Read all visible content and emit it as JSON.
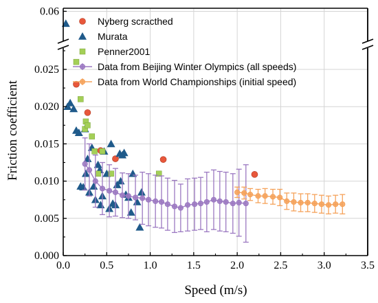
{
  "chart_data": {
    "type": "scatter",
    "xlabel": "Speed (m/s)",
    "ylabel": "Friction coefficient",
    "xlim": [
      0.0,
      3.5
    ],
    "ylim_lower": [
      0.0,
      0.028
    ],
    "ylim_upper_value": 0.06,
    "y_axis_break": true,
    "grid": true,
    "legend_position": "top-right",
    "x_ticks": [
      "0.0",
      "0.5",
      "1.0",
      "1.5",
      "2.0",
      "2.5",
      "3.0",
      "3.5"
    ],
    "y_ticks": [
      "0.000",
      "0.005",
      "0.010",
      "0.015",
      "0.020",
      "0.025"
    ],
    "y_upper_tick": "0.06",
    "series": [
      {
        "name": "Nyberg scracthed",
        "marker": "circle",
        "color": "#e8573b",
        "points": [
          [
            0.15,
            0.023
          ],
          [
            0.28,
            0.0192
          ],
          [
            0.43,
            0.0141
          ],
          [
            0.6,
            0.013
          ],
          [
            1.15,
            0.0129
          ],
          [
            2.2,
            0.0109
          ]
        ]
      },
      {
        "name": "Murata",
        "marker": "triangle",
        "color": "#1f5a8a",
        "points": [
          [
            0.03,
            0.058
          ],
          [
            0.05,
            0.02
          ],
          [
            0.08,
            0.0205
          ],
          [
            0.12,
            0.0197
          ],
          [
            0.15,
            0.0168
          ],
          [
            0.18,
            0.0165
          ],
          [
            0.2,
            0.0093
          ],
          [
            0.23,
            0.0092
          ],
          [
            0.25,
            0.017
          ],
          [
            0.26,
            0.011
          ],
          [
            0.28,
            0.013
          ],
          [
            0.3,
            0.0085
          ],
          [
            0.33,
            0.0145
          ],
          [
            0.35,
            0.0093
          ],
          [
            0.37,
            0.0075
          ],
          [
            0.4,
            0.0122
          ],
          [
            0.42,
            0.0115
          ],
          [
            0.43,
            0.0068
          ],
          [
            0.45,
            0.008
          ],
          [
            0.47,
            0.014
          ],
          [
            0.5,
            0.011
          ],
          [
            0.53,
            0.0063
          ],
          [
            0.55,
            0.015
          ],
          [
            0.57,
            0.007
          ],
          [
            0.6,
            0.0068
          ],
          [
            0.62,
            0.0095
          ],
          [
            0.65,
            0.0137
          ],
          [
            0.66,
            0.01
          ],
          [
            0.68,
            0.0135
          ],
          [
            0.7,
            0.0138
          ],
          [
            0.72,
            0.0082
          ],
          [
            0.75,
            0.0078
          ],
          [
            0.78,
            0.0058
          ],
          [
            0.8,
            0.011
          ],
          [
            0.85,
            0.0072
          ],
          [
            0.88,
            0.0038
          ],
          [
            0.9,
            0.0085
          ]
        ]
      },
      {
        "name": "Penner2001",
        "marker": "square",
        "color": "#a4cf57",
        "points": [
          [
            0.15,
            0.026
          ],
          [
            0.2,
            0.021
          ],
          [
            0.25,
            0.017
          ],
          [
            0.26,
            0.018
          ],
          [
            0.28,
            0.0175
          ],
          [
            0.33,
            0.016
          ],
          [
            0.36,
            0.014
          ],
          [
            0.4,
            0.011
          ],
          [
            0.45,
            0.014
          ],
          [
            0.55,
            0.011
          ],
          [
            1.1,
            0.011
          ]
        ]
      },
      {
        "name": "Data from Beijing Winter Olympics (all speeds)",
        "marker": "circle-line",
        "color": "#9b78c1",
        "points": [
          [
            0.25,
            0.0123,
            0.0035
          ],
          [
            0.3,
            0.0115,
            0.0035
          ],
          [
            0.37,
            0.01,
            0.0035
          ],
          [
            0.45,
            0.009,
            0.0035
          ],
          [
            0.53,
            0.0087,
            0.0035
          ],
          [
            0.6,
            0.0085,
            0.0032
          ],
          [
            0.68,
            0.0081,
            0.003
          ],
          [
            0.75,
            0.008,
            0.003
          ],
          [
            0.83,
            0.0078,
            0.003
          ],
          [
            0.91,
            0.0077,
            0.0035
          ],
          [
            0.98,
            0.0075,
            0.0035
          ],
          [
            1.06,
            0.0073,
            0.0035
          ],
          [
            1.13,
            0.0072,
            0.0035
          ],
          [
            1.2,
            0.0069,
            0.0035
          ],
          [
            1.28,
            0.0066,
            0.0035
          ],
          [
            1.35,
            0.0064,
            0.0032
          ],
          [
            1.43,
            0.0068,
            0.0035
          ],
          [
            1.51,
            0.0069,
            0.0035
          ],
          [
            1.58,
            0.007,
            0.0035
          ],
          [
            1.65,
            0.0072,
            0.004
          ],
          [
            1.73,
            0.0075,
            0.004
          ],
          [
            1.8,
            0.0073,
            0.004
          ],
          [
            1.87,
            0.0072,
            0.004
          ],
          [
            1.95,
            0.007,
            0.004
          ],
          [
            2.02,
            0.0071,
            0.0045
          ],
          [
            2.1,
            0.007,
            0.0052
          ]
        ]
      },
      {
        "name": "Data from World Championships (initial speed)",
        "marker": "circle-line",
        "color": "#f5a25a",
        "points": [
          [
            2.0,
            0.0085,
            0.0007
          ],
          [
            2.08,
            0.0084,
            0.0008
          ],
          [
            2.15,
            0.0082,
            0.0008
          ],
          [
            2.24,
            0.008,
            0.0009
          ],
          [
            2.32,
            0.008,
            0.001
          ],
          [
            2.41,
            0.0079,
            0.001
          ],
          [
            2.49,
            0.0078,
            0.0011
          ],
          [
            2.57,
            0.0073,
            0.0011
          ],
          [
            2.65,
            0.0072,
            0.0012
          ],
          [
            2.73,
            0.0071,
            0.0012
          ],
          [
            2.81,
            0.0071,
            0.0012
          ],
          [
            2.89,
            0.007,
            0.0012
          ],
          [
            2.97,
            0.0069,
            0.0012
          ],
          [
            3.05,
            0.0068,
            0.0012
          ],
          [
            3.13,
            0.0069,
            0.0012
          ],
          [
            3.21,
            0.0069,
            0.0013
          ]
        ]
      }
    ]
  }
}
